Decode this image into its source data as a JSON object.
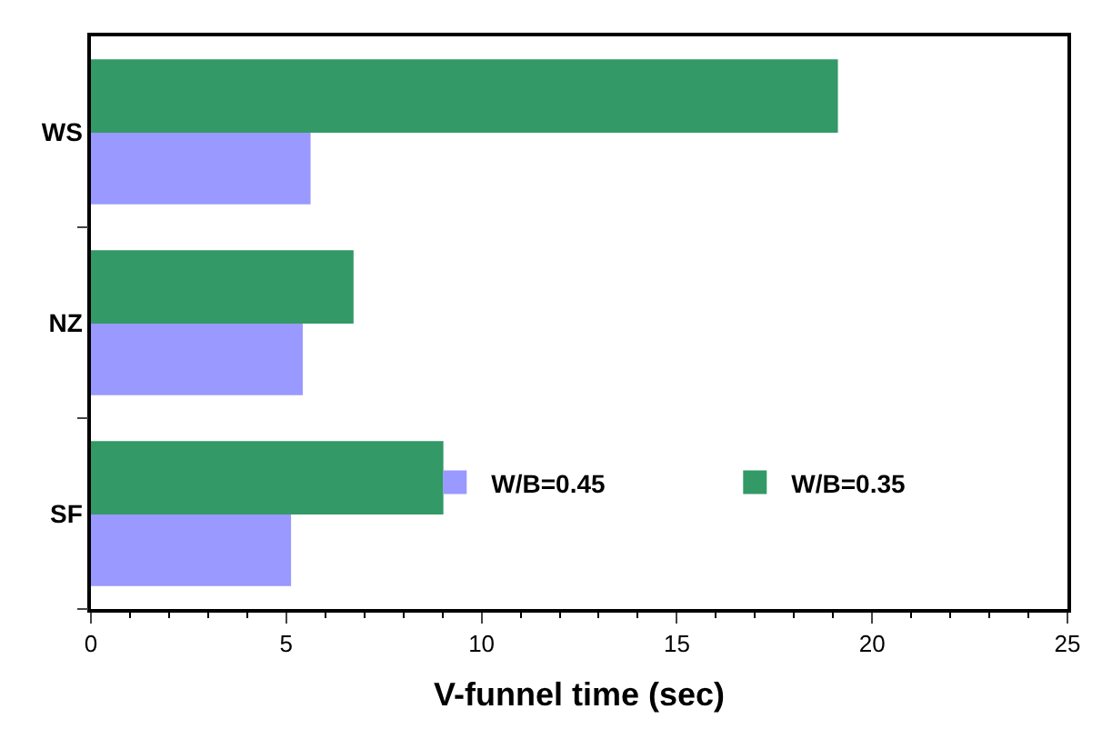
{
  "chart_data": {
    "type": "bar",
    "orientation": "horizontal",
    "categories": [
      "WS",
      "NZ",
      "SF"
    ],
    "xlabel": "V-funnel time (sec)",
    "xlim": [
      0,
      25
    ],
    "xticks": [
      0,
      5,
      10,
      15,
      20,
      25
    ],
    "legend": "bottom right",
    "series": [
      {
        "name": "W/B=0.45",
        "color": "#9999ff",
        "values": [
          5.6,
          5.4,
          5.1
        ]
      },
      {
        "name": "W/B=0.35",
        "color": "#339966",
        "values": [
          19.1,
          6.7,
          9.0
        ]
      }
    ]
  }
}
